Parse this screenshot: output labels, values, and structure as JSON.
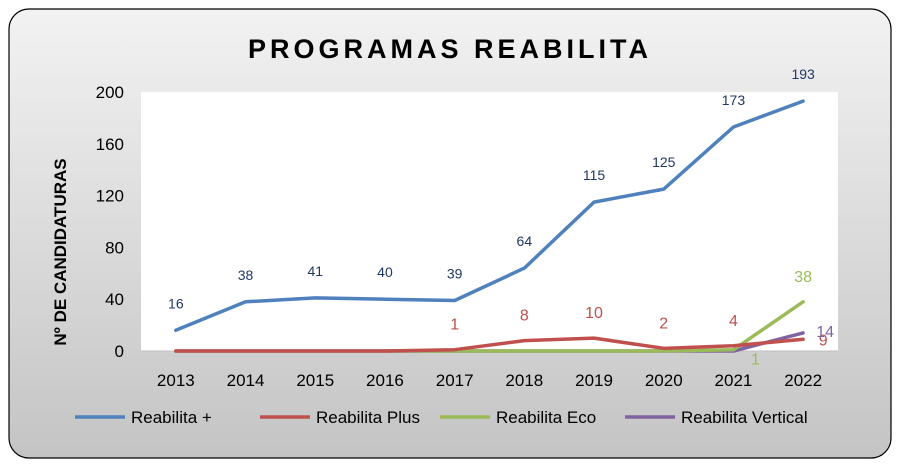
{
  "chart_data": {
    "type": "line",
    "title": "PROGRAMAS REABILITA",
    "xlabel": "",
    "ylabel": "Nº DE CANDIDATURAS",
    "ylim": [
      0,
      200
    ],
    "yticks": [
      "0",
      "40",
      "80",
      "120",
      "160",
      "200"
    ],
    "categories": [
      "2013",
      "2014",
      "2015",
      "2016",
      "2017",
      "2018",
      "2019",
      "2020",
      "2021",
      "2022"
    ],
    "legend_position": "bottom",
    "series": [
      {
        "name": "Reabilita +",
        "color": "#4F81BD",
        "label_color": "#1F3864",
        "values": [
          16,
          38,
          41,
          40,
          39,
          64,
          115,
          125,
          173,
          193
        ],
        "labels": [
          "16",
          "38",
          "41",
          "40",
          "39",
          "64",
          "115",
          "125",
          "173",
          "193"
        ]
      },
      {
        "name": "Reabilita Plus",
        "color": "#C0504D",
        "label_color": "#C0504D",
        "values": [
          0,
          0,
          0,
          0,
          1,
          8,
          10,
          2,
          4,
          9
        ],
        "labels": [
          null,
          null,
          null,
          null,
          "1",
          "8",
          "10",
          "2",
          "4",
          "9"
        ]
      },
      {
        "name": "Reabilita Eco",
        "color": "#9BBB59",
        "label_color": "#9BBB59",
        "values": [
          0,
          0,
          0,
          0,
          0,
          0,
          0,
          0,
          1,
          38
        ],
        "labels": [
          null,
          null,
          null,
          null,
          null,
          null,
          null,
          null,
          "1",
          "38"
        ]
      },
      {
        "name": "Reabilita Vertical",
        "color": "#8064A2",
        "label_color": "#8064A2",
        "values": [
          0,
          0,
          0,
          0,
          0,
          0,
          0,
          0,
          0,
          14
        ],
        "labels": [
          null,
          null,
          null,
          null,
          null,
          null,
          null,
          null,
          null,
          "14"
        ]
      }
    ]
  }
}
